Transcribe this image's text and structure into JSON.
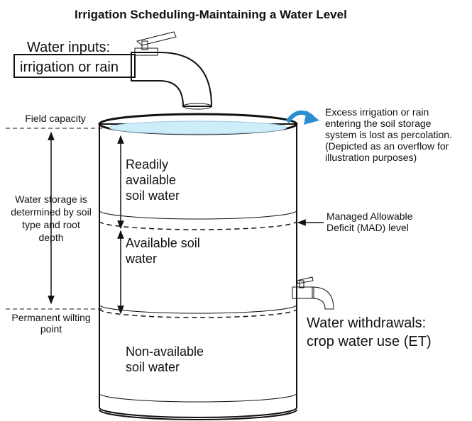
{
  "title": "Irrigation Scheduling-Maintaining a Water Level",
  "inputs": [
    "Water inputs:",
    "irrigation or rain"
  ],
  "field_capacity": "Field capacity",
  "storage": [
    "Water storage is",
    "determined by soil",
    "type and root",
    "depth"
  ],
  "wilting": [
    "Permanent wilting",
    "point"
  ],
  "zones": {
    "readily": [
      "Readily",
      "available",
      "soil water"
    ],
    "available": [
      "Available soil",
      "water"
    ],
    "non_available": [
      "Non-available",
      "soil water"
    ]
  },
  "excess": [
    "Excess irrigation or rain",
    "entering the soil storage",
    "system is lost as percolation.",
    "(Depicted as an overflow for",
    "illustration purposes)"
  ],
  "mad": [
    "Managed Allowable",
    "Deficit (MAD) level"
  ],
  "withdrawals": [
    "Water withdrawals:",
    "crop water use (ET)"
  ]
}
